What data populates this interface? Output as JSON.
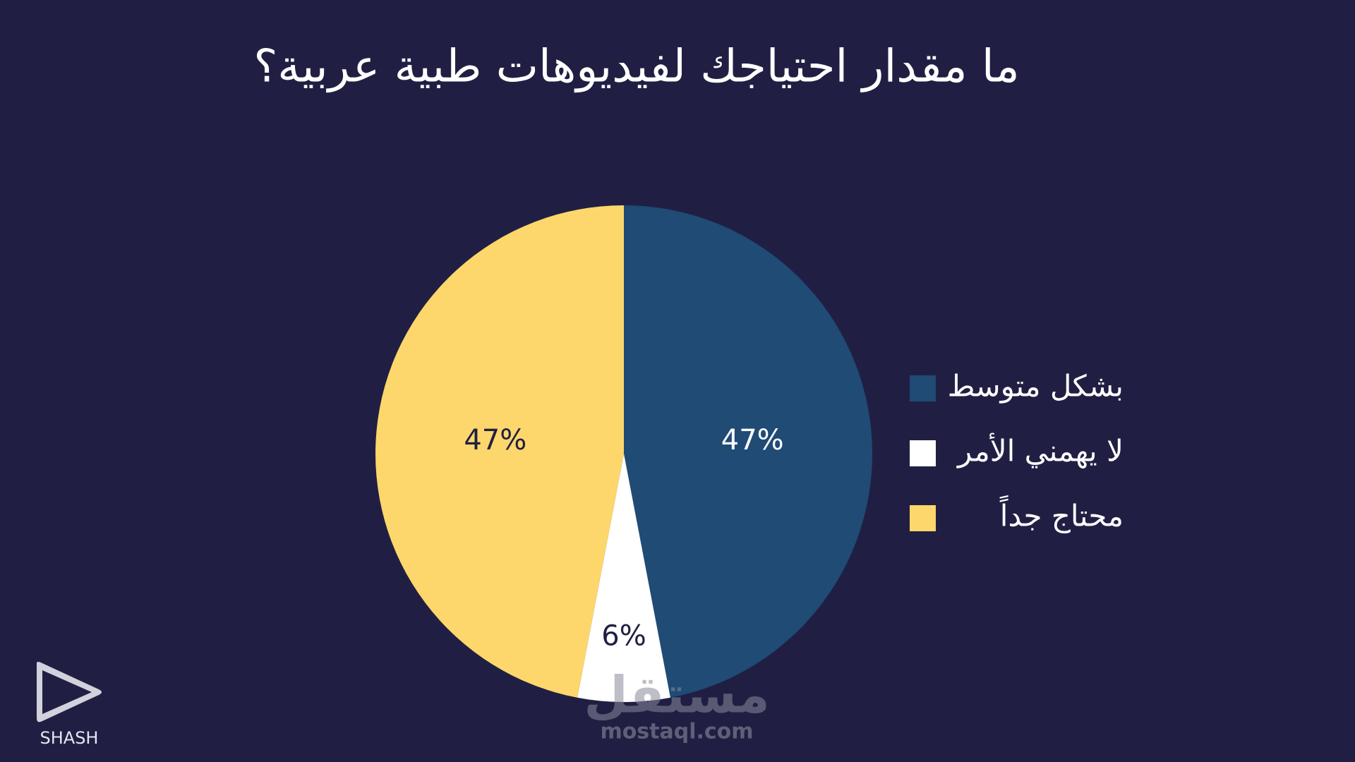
{
  "chart_data": {
    "type": "pie",
    "title": "ما مقدار احتياجك لفيديوهات طبية عربية؟",
    "categories": [
      "بشكل متوسط",
      "لا يهمني الأمر",
      "محتاج جداً"
    ],
    "values": [
      47,
      6,
      47
    ],
    "value_labels": [
      "47%",
      "6%",
      "47%"
    ],
    "colors": [
      "#1f4b75",
      "#ffffff",
      "#fdd76b"
    ],
    "legend": "right"
  },
  "branding": {
    "logo_text": "SHASH",
    "watermark": "مستقل",
    "watermark_url": "mostaql.com"
  }
}
